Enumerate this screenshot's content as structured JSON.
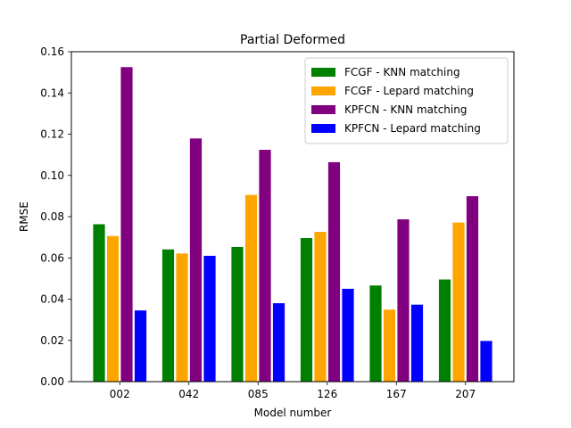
{
  "chart_data": {
    "type": "bar",
    "title": "Partial Deformed",
    "xlabel": "Model number",
    "ylabel": "RMSE",
    "categories": [
      "002",
      "042",
      "085",
      "126",
      "167",
      "207"
    ],
    "ylim": [
      0,
      0.16
    ],
    "yticks": [
      "0.00",
      "0.02",
      "0.04",
      "0.06",
      "0.08",
      "0.10",
      "0.12",
      "0.14",
      "0.16"
    ],
    "grid": false,
    "legend_position": "top-right",
    "series": [
      {
        "name": "FCGF - KNN matching",
        "color": "#008000",
        "values": [
          0.0765,
          0.0643,
          0.0655,
          0.0698,
          0.0468,
          0.0497
        ]
      },
      {
        "name": "FCGF - Lepard matching",
        "color": "#FFA500",
        "values": [
          0.0708,
          0.0623,
          0.0907,
          0.0728,
          0.0351,
          0.0773
        ]
      },
      {
        "name": "KPFCN - KNN matching",
        "color": "#800080",
        "values": [
          0.1527,
          0.1181,
          0.1126,
          0.1066,
          0.0789,
          0.0901
        ]
      },
      {
        "name": "KPFCN - Lepard matching",
        "color": "#0000FF",
        "values": [
          0.0347,
          0.0612,
          0.0382,
          0.0452,
          0.0375,
          0.0199
        ]
      }
    ]
  }
}
